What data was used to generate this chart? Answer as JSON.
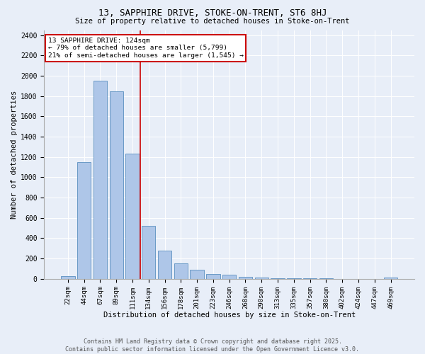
{
  "title1": "13, SAPPHIRE DRIVE, STOKE-ON-TRENT, ST6 8HJ",
  "title2": "Size of property relative to detached houses in Stoke-on-Trent",
  "xlabel": "Distribution of detached houses by size in Stoke-on-Trent",
  "ylabel": "Number of detached properties",
  "bar_labels": [
    "22sqm",
    "44sqm",
    "67sqm",
    "89sqm",
    "111sqm",
    "134sqm",
    "156sqm",
    "178sqm",
    "201sqm",
    "223sqm",
    "246sqm",
    "268sqm",
    "290sqm",
    "313sqm",
    "335sqm",
    "357sqm",
    "380sqm",
    "402sqm",
    "424sqm",
    "447sqm",
    "469sqm"
  ],
  "bar_values": [
    25,
    1150,
    1950,
    1850,
    1230,
    520,
    275,
    150,
    90,
    45,
    40,
    20,
    15,
    8,
    5,
    4,
    3,
    2,
    2,
    2,
    15
  ],
  "bar_color": "#aec6e8",
  "bar_edge_color": "#5a8fc0",
  "bg_color": "#e8eef8",
  "vline_color": "#cc0000",
  "annotation_title": "13 SAPPHIRE DRIVE: 124sqm",
  "annotation_line1": "← 79% of detached houses are smaller (5,799)",
  "annotation_line2": "21% of semi-detached houses are larger (1,545) →",
  "annotation_box_color": "#ffffff",
  "annotation_box_edge": "#cc0000",
  "footer_line1": "Contains HM Land Registry data © Crown copyright and database right 2025.",
  "footer_line2": "Contains public sector information licensed under the Open Government Licence v3.0.",
  "ylim": [
    0,
    2450
  ],
  "yticks": [
    0,
    200,
    400,
    600,
    800,
    1000,
    1200,
    1400,
    1600,
    1800,
    2000,
    2200,
    2400
  ]
}
